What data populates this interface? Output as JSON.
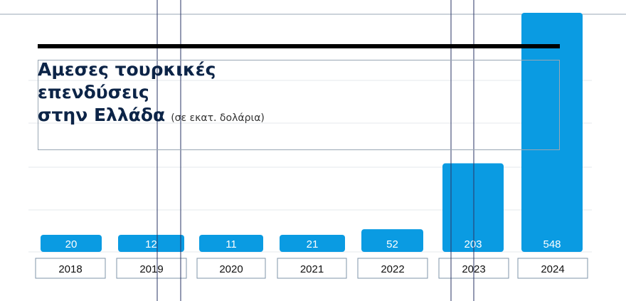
{
  "chart_data": {
    "type": "bar",
    "title_lines": [
      "Αμεσες τουρκικές",
      "επενδύσεις",
      "στην Ελλάδα"
    ],
    "subtitle": "(σε εκατ. δολάρια)",
    "categories": [
      "2018",
      "2019",
      "2020",
      "2021",
      "2022",
      "2023",
      "2024"
    ],
    "values": [
      20,
      12,
      11,
      21,
      52,
      203,
      548
    ],
    "value_labels": [
      "20",
      "12",
      "11",
      "21",
      "52",
      "203",
      "548"
    ],
    "bar_color": "#0a9be2",
    "title_color": "#0c2447",
    "grid": true
  }
}
